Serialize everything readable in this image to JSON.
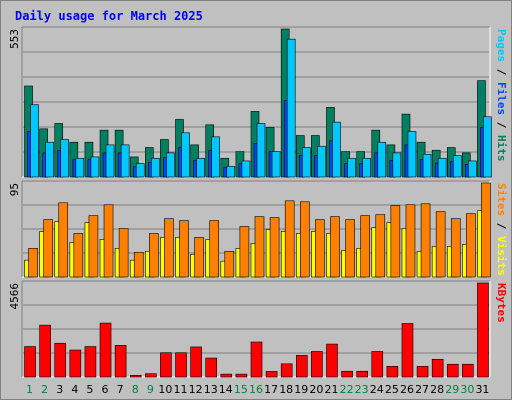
{
  "title": "Daily usage for March 2025",
  "chart_data": [
    {
      "type": "bar",
      "panel": "top",
      "ymax_label": "553",
      "ylim": [
        0,
        553
      ],
      "right_label_parts": [
        {
          "text": "Pages",
          "color": "#00c8ff"
        },
        {
          "text": " / ",
          "color": "#000000"
        },
        {
          "text": "Files",
          "color": "#0048ff"
        },
        {
          "text": " / ",
          "color": "#000000"
        },
        {
          "text": "Hits",
          "color": "#008060"
        }
      ],
      "categories": [
        "1",
        "2",
        "3",
        "4",
        "5",
        "6",
        "7",
        "8",
        "9",
        "10",
        "11",
        "12",
        "13",
        "14",
        "15",
        "16",
        "17",
        "18",
        "19",
        "20",
        "21",
        "22",
        "23",
        "24",
        "25",
        "26",
        "27",
        "28",
        "29",
        "30",
        "31"
      ],
      "series": [
        {
          "name": "Hits",
          "color": "#008060",
          "values": [
            340,
            180,
            200,
            130,
            130,
            175,
            175,
            75,
            110,
            140,
            215,
            120,
            195,
            70,
            95,
            245,
            185,
            553,
            155,
            155,
            260,
            95,
            95,
            175,
            120,
            235,
            130,
            100,
            110,
            90,
            360
          ]
        },
        {
          "name": "Files",
          "color": "#0048ff",
          "values": [
            170,
            90,
            100,
            65,
            65,
            90,
            90,
            38,
            55,
            72,
            110,
            62,
            100,
            35,
            50,
            125,
            95,
            285,
            80,
            80,
            135,
            50,
            50,
            90,
            62,
            120,
            65,
            52,
            57,
            47,
            185
          ]
        },
        {
          "name": "Pages",
          "color": "#00c8ff",
          "values": [
            270,
            130,
            140,
            70,
            75,
            120,
            120,
            50,
            70,
            90,
            165,
            70,
            150,
            40,
            60,
            200,
            95,
            515,
            110,
            115,
            205,
            70,
            70,
            130,
            90,
            170,
            85,
            70,
            80,
            60,
            225
          ]
        }
      ]
    },
    {
      "type": "bar",
      "panel": "middle",
      "ymax_label": "95",
      "ylim": [
        0,
        95
      ],
      "right_label_parts": [
        {
          "text": "Sites",
          "color": "#ff8000"
        },
        {
          "text": " / ",
          "color": "#000000"
        },
        {
          "text": "Visits",
          "color": "#ffff00"
        }
      ],
      "categories": [
        "1",
        "2",
        "3",
        "4",
        "5",
        "6",
        "7",
        "8",
        "9",
        "10",
        "11",
        "12",
        "13",
        "14",
        "15",
        "16",
        "17",
        "18",
        "19",
        "20",
        "21",
        "22",
        "23",
        "24",
        "25",
        "26",
        "27",
        "28",
        "29",
        "30",
        "31"
      ],
      "series": [
        {
          "name": "Visits",
          "color": "#ffff00",
          "values": [
            17,
            46,
            56,
            35,
            55,
            38,
            29,
            17,
            26,
            40,
            40,
            23,
            38,
            16,
            29,
            34,
            48,
            46,
            44,
            46,
            44,
            27,
            29,
            50,
            55,
            49,
            26,
            31,
            31,
            33,
            67
          ]
        },
        {
          "name": "Sites",
          "color": "#ff8000",
          "values": [
            29,
            58,
            75,
            44,
            62,
            73,
            49,
            25,
            44,
            59,
            57,
            40,
            57,
            26,
            51,
            61,
            60,
            77,
            76,
            58,
            61,
            58,
            62,
            63,
            72,
            73,
            74,
            66,
            59,
            64,
            95
          ]
        }
      ]
    },
    {
      "type": "bar",
      "panel": "bottom",
      "ymax_label": "4566",
      "ylim": [
        0,
        4566
      ],
      "right_label_parts": [
        {
          "text": "KBytes",
          "color": "#ff0000"
        }
      ],
      "categories": [
        "1",
        "2",
        "3",
        "4",
        "5",
        "6",
        "7",
        "8",
        "9",
        "10",
        "11",
        "12",
        "13",
        "14",
        "15",
        "16",
        "17",
        "18",
        "19",
        "20",
        "21",
        "22",
        "23",
        "24",
        "25",
        "26",
        "27",
        "28",
        "29",
        "30",
        "31"
      ],
      "series": [
        {
          "name": "KBytes",
          "color": "#ff0000",
          "values": [
            1480,
            2520,
            1640,
            1310,
            1480,
            2620,
            1540,
            80,
            160,
            1180,
            1180,
            1460,
            920,
            140,
            140,
            1700,
            270,
            640,
            1050,
            1240,
            1600,
            280,
            280,
            1240,
            520,
            2600,
            520,
            860,
            620,
            620,
            4566
          ]
        }
      ]
    }
  ],
  "weekend_days": [
    "1",
    "2",
    "8",
    "9",
    "15",
    "16",
    "22",
    "23",
    "29",
    "30"
  ],
  "xlabel_colors": {
    "weekday": "#000000",
    "weekend": "#008040"
  }
}
